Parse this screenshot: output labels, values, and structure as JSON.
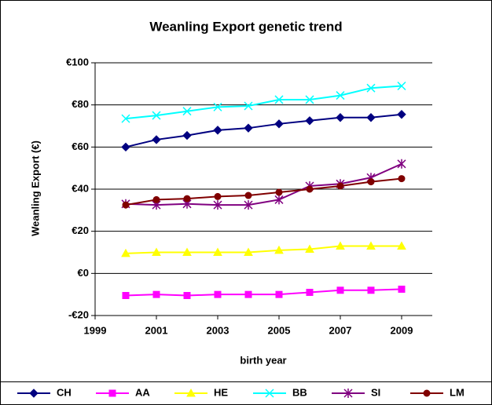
{
  "chart_data": {
    "type": "line",
    "title": "Weanling Export genetic trend",
    "x_label": "birth year",
    "y_label": "Weanling Export (€)",
    "x": [
      2000,
      2001,
      2002,
      2003,
      2004,
      2005,
      2006,
      2007,
      2008,
      2009
    ],
    "xlim": [
      1999,
      2010
    ],
    "xticks": [
      1999,
      2001,
      2003,
      2005,
      2007,
      2009
    ],
    "ylim": [
      -20,
      100
    ],
    "yticks": [
      {
        "value": -20,
        "label": "-€20"
      },
      {
        "value": 0,
        "label": "€0"
      },
      {
        "value": 20,
        "label": "€20"
      },
      {
        "value": 40,
        "label": "€40"
      },
      {
        "value": 60,
        "label": "€60"
      },
      {
        "value": 80,
        "label": "€80"
      },
      {
        "value": 100,
        "label": "€100"
      }
    ],
    "grid": true,
    "legend": "bottom",
    "series": [
      {
        "name": "CH",
        "color": "#000080",
        "marker": "diamond",
        "values": [
          60,
          63.5,
          65.5,
          68,
          69,
          71,
          72.5,
          74,
          74,
          75.5
        ]
      },
      {
        "name": "AA",
        "color": "#ff00ff",
        "marker": "square",
        "values": [
          -10.5,
          -10,
          -10.5,
          -10,
          -10,
          -10,
          -9,
          -8,
          -8,
          -7.5
        ]
      },
      {
        "name": "HE",
        "color": "#ffff00",
        "marker": "triangle",
        "values": [
          9.5,
          10,
          10,
          10,
          10,
          11,
          11.5,
          13,
          13,
          13
        ]
      },
      {
        "name": "BB",
        "color": "#00ffff",
        "marker": "x",
        "values": [
          73.5,
          75,
          77,
          79,
          79.5,
          82.5,
          82.5,
          84.5,
          88,
          89
        ]
      },
      {
        "name": "SI",
        "color": "#800080",
        "marker": "star",
        "values": [
          33,
          32.5,
          33,
          32.5,
          32.5,
          35,
          41.5,
          42.5,
          45.5,
          52
        ]
      },
      {
        "name": "LM",
        "color": "#800000",
        "marker": "circle",
        "values": [
          32.5,
          35,
          35.5,
          36.5,
          37,
          38.5,
          40,
          41.5,
          43.5,
          45
        ]
      }
    ]
  }
}
